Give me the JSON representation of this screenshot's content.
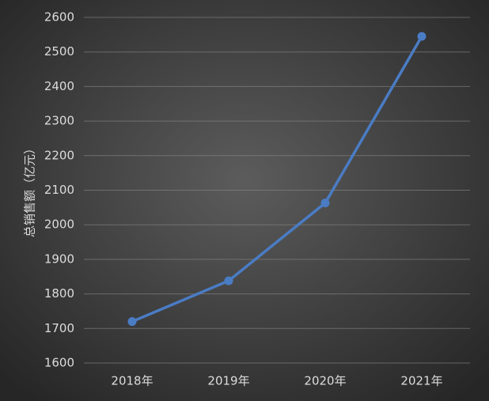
{
  "chart_data": {
    "type": "line",
    "y_label": "总销售额（亿元）",
    "categories": [
      "2018年",
      "2019年",
      "2020年",
      "2021年"
    ],
    "values": [
      1720,
      1838,
      2063,
      2545
    ],
    "color": "#4a7cc4",
    "ylim": [
      1600,
      2600
    ],
    "yticks": [
      1600,
      1700,
      1800,
      1900,
      2000,
      2100,
      2200,
      2300,
      2400,
      2500,
      2600
    ],
    "grid": true
  }
}
